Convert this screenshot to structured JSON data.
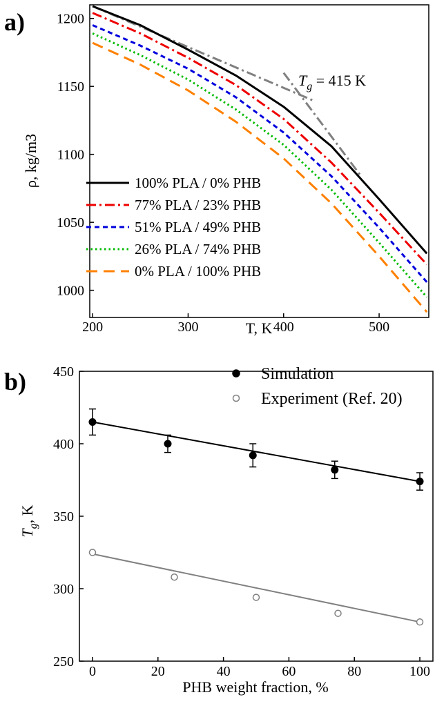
{
  "chart_data": [
    {
      "panel": "a)",
      "type": "line",
      "title": "",
      "xlabel": "T, K",
      "ylabel": "ρ, kg/m3",
      "xlim": [
        197,
        552
      ],
      "ylim": [
        980,
        1210
      ],
      "xticks": [
        200,
        300,
        400,
        500
      ],
      "yticks": [
        1000,
        1050,
        1100,
        1150,
        1200
      ],
      "legend_position": "bottom-left",
      "grid": false,
      "annotation": {
        "text_before": "T",
        "subscript": "g",
        "text_after": " = 415 K"
      },
      "tg_fit_lines": [
        {
          "color": "#808080",
          "x": [
            200,
            433
          ],
          "y": [
            1209,
            1139
          ]
        },
        {
          "color": "#808080",
          "x": [
            400,
            480
          ],
          "y": [
            1160,
            1085
          ]
        }
      ],
      "series": [
        {
          "name": "100% PLA / 0% PHB",
          "color": "#000000",
          "dash": "solid",
          "x": [
            200,
            250,
            300,
            350,
            400,
            450,
            500,
            550
          ],
          "y": [
            1209,
            1195,
            1177,
            1158,
            1135,
            1106,
            1067,
            1027
          ]
        },
        {
          "name": "77% PLA / 23% PHB",
          "color": "#ee0000",
          "dash": "dashdot",
          "x": [
            200,
            250,
            300,
            350,
            400,
            450,
            500,
            550
          ],
          "y": [
            1204,
            1189,
            1171,
            1151,
            1126,
            1094,
            1057,
            1019
          ]
        },
        {
          "name": "51% PLA / 49% PHB",
          "color": "#0000dd",
          "dash": "dash",
          "x": [
            200,
            250,
            300,
            350,
            400,
            450,
            500,
            550
          ],
          "y": [
            1195,
            1180,
            1163,
            1142,
            1116,
            1084,
            1046,
            1006
          ]
        },
        {
          "name": "26% PLA / 74% PHB",
          "color": "#00bb00",
          "dash": "dot",
          "x": [
            200,
            250,
            300,
            350,
            400,
            450,
            500,
            550
          ],
          "y": [
            1189,
            1173,
            1155,
            1133,
            1107,
            1074,
            1035,
            995
          ]
        },
        {
          "name": "0% PLA / 100% PHB",
          "color": "#ff8000",
          "dash": "longdash",
          "x": [
            200,
            250,
            300,
            350,
            400,
            450,
            500,
            550
          ],
          "y": [
            1182,
            1166,
            1147,
            1124,
            1097,
            1064,
            1025,
            984
          ]
        }
      ]
    },
    {
      "panel": "b)",
      "type": "scatter",
      "title": "",
      "xlabel": "PHB weight fraction, %",
      "ylabel": "Tg, K",
      "ylabel_parts": {
        "main": "T",
        "subscript": "g",
        "rest": ", K"
      },
      "xlim": [
        -4,
        104
      ],
      "ylim": [
        250,
        450
      ],
      "xticks": [
        0,
        20,
        40,
        60,
        80,
        100
      ],
      "yticks": [
        250,
        300,
        350,
        400,
        450
      ],
      "legend_position": "top-right",
      "grid": false,
      "series": [
        {
          "name": "Simulation",
          "color": "#000000",
          "marker": "filled-circle",
          "x": [
            0,
            23,
            49,
            74,
            100
          ],
          "y": [
            415,
            400,
            392,
            382,
            374
          ],
          "err": [
            9,
            6,
            8,
            6,
            6
          ],
          "fit": {
            "x": [
              0,
              100
            ],
            "y": [
              415,
              374
            ]
          }
        },
        {
          "name": "Experiment (Ref. 20)",
          "color": "#808080",
          "marker": "open-circle",
          "x": [
            0,
            25,
            50,
            75,
            100
          ],
          "y": [
            325,
            308,
            294,
            283,
            277
          ],
          "fit": {
            "x": [
              0,
              100
            ],
            "y": [
              324,
              277
            ]
          }
        }
      ]
    }
  ]
}
